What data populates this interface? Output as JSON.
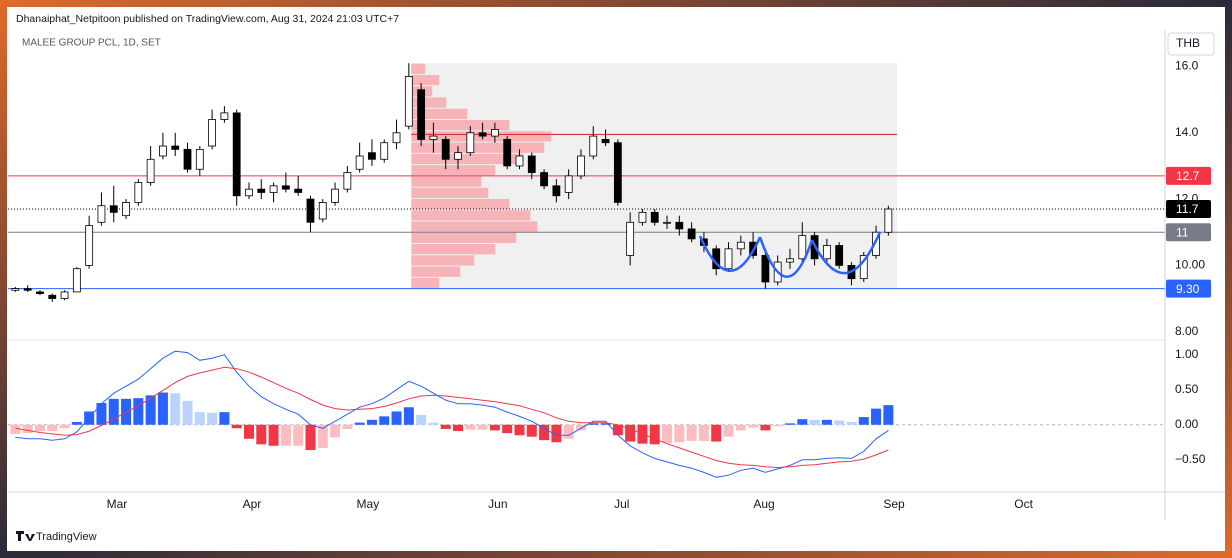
{
  "header": {
    "published": "Dhanaiphat_Netpitoon published on TradingView.com, Aug 31, 2024 21:03 UTC+7",
    "symbol": "MALEE GROUP PCL, 1D, SET",
    "currency": "THB",
    "footer": "TradingView"
  },
  "chart_data": [
    {
      "type": "candlestick",
      "xlim": [
        -0.6,
        93.5
      ],
      "ylim": [
        7.75,
        17.1
      ],
      "yticks": [
        {
          "value": 16,
          "label": "16.0"
        },
        {
          "value": 14,
          "label": "14.0"
        },
        {
          "value": 12,
          "label": "12.0"
        },
        {
          "value": 10,
          "label": "10.00"
        },
        {
          "value": 8,
          "label": "8.00"
        }
      ],
      "up_color": "#ffffff",
      "down_color": "#000000",
      "outline_color": "#000000",
      "candles": [
        [
          9.25,
          9.35,
          9.2,
          9.3
        ],
        [
          9.3,
          9.4,
          9.2,
          9.25
        ],
        [
          9.2,
          9.25,
          9.1,
          9.15
        ],
        [
          9.1,
          9.15,
          8.9,
          9.0
        ],
        [
          9.0,
          9.25,
          8.95,
          9.2
        ],
        [
          9.2,
          9.95,
          9.2,
          9.9
        ],
        [
          10.0,
          11.5,
          9.9,
          11.2
        ],
        [
          11.3,
          12.2,
          11.2,
          11.8
        ],
        [
          11.8,
          12.4,
          11.3,
          11.6
        ],
        [
          11.5,
          12.0,
          11.4,
          11.9
        ],
        [
          11.9,
          12.6,
          11.8,
          12.5
        ],
        [
          12.5,
          13.6,
          12.4,
          13.2
        ],
        [
          13.3,
          14.0,
          13.2,
          13.6
        ],
        [
          13.6,
          14.0,
          13.3,
          13.5
        ],
        [
          13.5,
          13.7,
          12.8,
          12.9
        ],
        [
          12.9,
          13.6,
          12.7,
          13.5
        ],
        [
          13.6,
          14.7,
          13.5,
          14.4
        ],
        [
          14.4,
          14.8,
          14.3,
          14.6
        ],
        [
          14.6,
          14.7,
          11.8,
          12.1
        ],
        [
          12.1,
          12.5,
          12.0,
          12.3
        ],
        [
          12.3,
          12.6,
          12.0,
          12.2
        ],
        [
          12.2,
          12.5,
          11.9,
          12.4
        ],
        [
          12.4,
          12.8,
          12.2,
          12.3
        ],
        [
          12.3,
          12.7,
          12.1,
          12.2
        ],
        [
          12.0,
          12.1,
          11.0,
          11.3
        ],
        [
          11.4,
          12.0,
          11.3,
          11.9
        ],
        [
          11.9,
          12.5,
          11.8,
          12.3
        ],
        [
          12.3,
          13.0,
          12.2,
          12.8
        ],
        [
          12.9,
          13.7,
          12.8,
          13.3
        ],
        [
          13.4,
          13.8,
          13.0,
          13.2
        ],
        [
          13.2,
          13.8,
          13.1,
          13.7
        ],
        [
          13.7,
          14.4,
          13.5,
          14.0
        ],
        [
          14.2,
          16.1,
          14.1,
          15.7
        ],
        [
          15.3,
          15.5,
          13.6,
          13.8
        ],
        [
          13.8,
          14.3,
          13.4,
          13.9
        ],
        [
          13.8,
          13.9,
          12.9,
          13.2
        ],
        [
          13.2,
          13.6,
          12.9,
          13.4
        ],
        [
          13.4,
          14.2,
          13.3,
          14.0
        ],
        [
          14.0,
          14.3,
          13.8,
          13.9
        ],
        [
          13.9,
          14.3,
          13.7,
          14.1
        ],
        [
          13.8,
          13.9,
          12.9,
          13.0
        ],
        [
          13.0,
          13.5,
          12.9,
          13.3
        ],
        [
          13.3,
          13.4,
          12.6,
          12.8
        ],
        [
          12.8,
          12.9,
          12.3,
          12.4
        ],
        [
          12.4,
          12.6,
          11.9,
          12.1
        ],
        [
          12.2,
          12.9,
          12.0,
          12.7
        ],
        [
          12.7,
          13.5,
          12.6,
          13.3
        ],
        [
          13.3,
          14.2,
          13.2,
          13.9
        ],
        [
          13.8,
          14.1,
          13.6,
          13.7
        ],
        [
          13.7,
          13.8,
          11.8,
          11.9
        ],
        [
          10.3,
          11.6,
          10.0,
          11.3
        ],
        [
          11.3,
          11.7,
          11.2,
          11.6
        ],
        [
          11.6,
          11.7,
          11.2,
          11.3
        ],
        [
          11.3,
          11.5,
          11.1,
          11.3
        ],
        [
          11.3,
          11.5,
          10.9,
          11.1
        ],
        [
          11.1,
          11.3,
          10.7,
          10.8
        ],
        [
          10.8,
          11.0,
          10.4,
          10.6
        ],
        [
          10.5,
          10.6,
          9.7,
          9.9
        ],
        [
          9.9,
          10.7,
          9.8,
          10.5
        ],
        [
          10.5,
          10.9,
          10.3,
          10.7
        ],
        [
          10.7,
          11.0,
          10.2,
          10.3
        ],
        [
          10.3,
          10.4,
          9.3,
          9.5
        ],
        [
          9.5,
          10.3,
          9.4,
          10.1
        ],
        [
          10.1,
          10.5,
          9.9,
          10.2
        ],
        [
          10.2,
          11.3,
          10.1,
          10.9
        ],
        [
          10.9,
          11.0,
          10.0,
          10.2
        ],
        [
          10.2,
          10.8,
          10.1,
          10.6
        ],
        [
          10.6,
          10.7,
          9.9,
          10.0
        ],
        [
          10.0,
          10.1,
          9.4,
          9.6
        ],
        [
          9.6,
          10.4,
          9.5,
          10.3
        ],
        [
          10.3,
          11.2,
          10.2,
          11.0
        ],
        [
          11.0,
          11.8,
          10.9,
          11.7
        ]
      ],
      "range_box": {
        "from": 32.2,
        "to": 71.7,
        "top": 16.1,
        "bottom": 9.3,
        "line": 13.95,
        "color": "#f0f0f0",
        "line_color": "#e0303a"
      },
      "volume_profile": {
        "color": "#f6b3b8",
        "bins": [
          9.3,
          9.64,
          9.98,
          10.32,
          10.66,
          11.0,
          11.34,
          11.68,
          12.02,
          12.36,
          12.7,
          13.04,
          13.38,
          13.72,
          14.06,
          14.4,
          14.74,
          15.08,
          15.42,
          15.76,
          16.1
        ],
        "values": [
          20,
          35,
          45,
          60,
          75,
          90,
          85,
          70,
          55,
          50,
          60,
          80,
          95,
          100,
          70,
          40,
          25,
          15,
          20,
          10
        ]
      },
      "price_lines": [
        {
          "value": 12.7,
          "color": "#f23645",
          "style": "solid"
        },
        {
          "value": 11.7,
          "color": "#000000",
          "style": "dotted"
        },
        {
          "value": 11.0,
          "color": "#787b86",
          "style": "solid"
        },
        {
          "value": 9.3,
          "label": "9.30",
          "color": "#2962ff",
          "style": "solid"
        }
      ]
    },
    {
      "type": "macd",
      "xlim": [
        -0.6,
        93.5
      ],
      "ylim": [
        -0.96,
        1.21
      ],
      "yticks": [
        {
          "value": 1,
          "label": "1.00"
        },
        {
          "value": 0.5,
          "label": "0.50"
        },
        {
          "value": 0,
          "label": "0.00"
        },
        {
          "value": -0.5,
          "label": "−0.50"
        }
      ],
      "xticks": [
        {
          "value": 8.26,
          "label": "Mar"
        },
        {
          "value": 19.24,
          "label": "Apr"
        },
        {
          "value": 28.67,
          "label": "May"
        },
        {
          "value": 39.24,
          "label": "Jun"
        },
        {
          "value": 49.32,
          "label": "Jul"
        },
        {
          "value": 60.89,
          "label": "Aug"
        },
        {
          "value": 71.46,
          "label": "Sep"
        },
        {
          "value": 82.0,
          "label": "Oct"
        }
      ],
      "hist_colors": [
        "#2962ff",
        "#bbd4fb",
        "#fcbcc0",
        "#f23645"
      ],
      "histogram": [
        -0.13,
        -0.12,
        -0.09,
        -0.09,
        -0.05,
        0.04,
        0.19,
        0.31,
        0.37,
        0.37,
        0.38,
        0.42,
        0.46,
        0.45,
        0.34,
        0.18,
        0.17,
        0.18,
        -0.05,
        -0.2,
        -0.28,
        -0.3,
        -0.3,
        -0.3,
        -0.36,
        -0.33,
        -0.18,
        -0.06,
        0.03,
        0.07,
        0.12,
        0.19,
        0.25,
        0.14,
        0.03,
        -0.06,
        -0.09,
        -0.07,
        -0.07,
        -0.08,
        -0.12,
        -0.15,
        -0.17,
        -0.22,
        -0.25,
        -0.2,
        -0.08,
        0.02,
        0.02,
        -0.15,
        -0.24,
        -0.27,
        -0.28,
        -0.26,
        -0.25,
        -0.23,
        -0.23,
        -0.24,
        -0.17,
        -0.08,
        -0.04,
        -0.08,
        -0.02,
        0.02,
        0.08,
        0.07,
        0.07,
        0.06,
        0.04,
        0.11,
        0.23,
        0.28
      ],
      "series": [
        {
          "color": "#2962ff",
          "values": [
            -0.18,
            -0.2,
            -0.2,
            -0.22,
            -0.2,
            -0.1,
            0.1,
            0.3,
            0.45,
            0.55,
            0.65,
            0.8,
            0.95,
            1.05,
            1.03,
            0.92,
            0.95,
            1.0,
            0.75,
            0.55,
            0.4,
            0.3,
            0.22,
            0.15,
            0.0,
            -0.05,
            0.05,
            0.15,
            0.25,
            0.3,
            0.38,
            0.5,
            0.62,
            0.55,
            0.45,
            0.35,
            0.3,
            0.3,
            0.28,
            0.25,
            0.18,
            0.12,
            0.05,
            -0.05,
            -0.15,
            -0.15,
            -0.05,
            0.05,
            0.05,
            -0.15,
            -0.3,
            -0.4,
            -0.48,
            -0.53,
            -0.58,
            -0.62,
            -0.68,
            -0.75,
            -0.72,
            -0.65,
            -0.62,
            -0.68,
            -0.63,
            -0.58,
            -0.5,
            -0.5,
            -0.48,
            -0.47,
            -0.48,
            -0.38,
            -0.2,
            -0.08
          ]
        },
        {
          "color": "#f23645",
          "values": [
            -0.05,
            -0.08,
            -0.11,
            -0.13,
            -0.15,
            -0.14,
            -0.09,
            -0.01,
            0.08,
            0.18,
            0.27,
            0.38,
            0.49,
            0.6,
            0.69,
            0.74,
            0.78,
            0.82,
            0.8,
            0.75,
            0.68,
            0.6,
            0.52,
            0.45,
            0.36,
            0.28,
            0.23,
            0.21,
            0.22,
            0.23,
            0.26,
            0.31,
            0.37,
            0.41,
            0.42,
            0.41,
            0.39,
            0.37,
            0.35,
            0.33,
            0.3,
            0.27,
            0.22,
            0.17,
            0.1,
            0.05,
            0.03,
            0.03,
            0.03,
            0.0,
            -0.06,
            -0.13,
            -0.2,
            -0.27,
            -0.33,
            -0.39,
            -0.45,
            -0.51,
            -0.55,
            -0.57,
            -0.58,
            -0.6,
            -0.61,
            -0.6,
            -0.58,
            -0.57,
            -0.55,
            -0.53,
            -0.52,
            -0.49,
            -0.43,
            -0.36
          ]
        }
      ]
    }
  ]
}
